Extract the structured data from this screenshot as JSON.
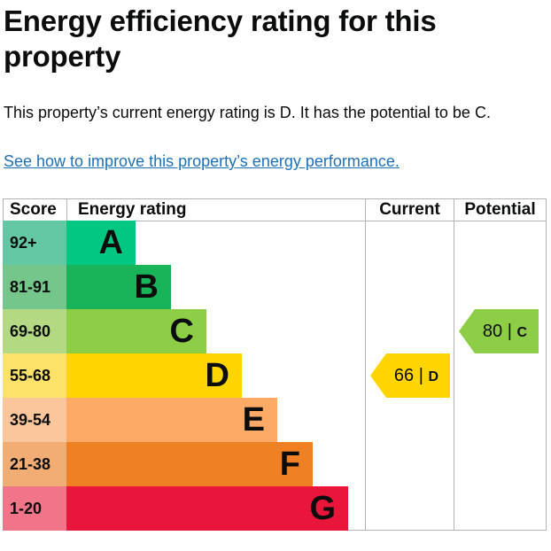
{
  "page": {
    "heading": "Energy efficiency rating for this property",
    "summary": "This property’s current energy rating is D. It has the potential to be C.",
    "link_text": "See how to improve this property’s energy performance."
  },
  "table": {
    "headers": {
      "score": "Score",
      "rating": "Energy rating",
      "current": "Current",
      "potential": "Potential"
    },
    "bands": [
      {
        "score": "92+",
        "letter": "A",
        "bar_color": "#00c781",
        "score_bg": "#63c8a3"
      },
      {
        "score": "81-91",
        "letter": "B",
        "bar_color": "#19b459",
        "score_bg": "#74c68b"
      },
      {
        "score": "69-80",
        "letter": "C",
        "bar_color": "#8dce46",
        "score_bg": "#b3da83"
      },
      {
        "score": "55-68",
        "letter": "D",
        "bar_color": "#ffd500",
        "score_bg": "#fde26a"
      },
      {
        "score": "39-54",
        "letter": "E",
        "bar_color": "#fcaa65",
        "score_bg": "#fbc69b"
      },
      {
        "score": "21-38",
        "letter": "F",
        "bar_color": "#ef8023",
        "score_bg": "#f2ad75"
      },
      {
        "score": "1-20",
        "letter": "G",
        "bar_color": "#e9153b",
        "score_bg": "#f17489"
      }
    ],
    "current": {
      "value": "66",
      "separator": "|",
      "letter": "D",
      "color": "#ffd500"
    },
    "potential": {
      "value": "80",
      "separator": "|",
      "letter": "C",
      "color": "#8dce46"
    }
  }
}
